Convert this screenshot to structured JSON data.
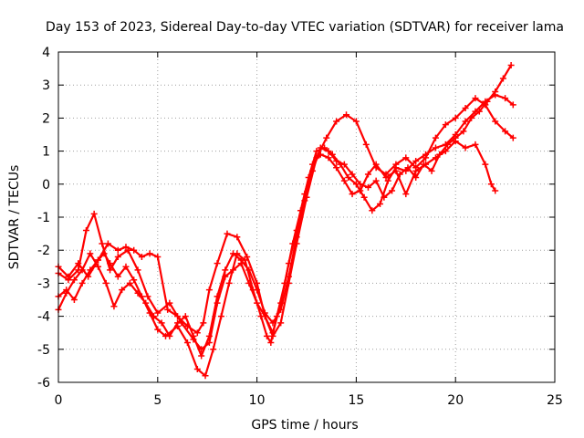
{
  "chart_data": {
    "type": "scatter",
    "title": "Day 153 of 2023, Sidereal Day-to-day VTEC variation (SDTVAR) for receiver lama",
    "xlabel": "GPS time / hours",
    "ylabel": "SDTVAR / TECUs",
    "xlim": [
      0,
      25
    ],
    "ylim": [
      -6,
      4
    ],
    "xticks": [
      "0",
      "5",
      "10",
      "15",
      "20",
      "25"
    ],
    "yticks": [
      "-6",
      "-5",
      "-4",
      "-3",
      "-2",
      "-1",
      "0",
      "1",
      "2",
      "3",
      "4"
    ],
    "grid": true,
    "marker": "+",
    "color": "#ff0000",
    "series": [
      {
        "x": [
          0.0,
          0.4,
          0.8,
          1.2,
          1.6,
          2.0,
          2.3,
          2.6,
          3.0,
          3.4,
          3.8,
          4.2,
          4.6,
          5.0,
          5.4,
          6.0,
          6.5,
          7.0,
          7.4,
          7.8,
          8.2,
          8.6,
          9.0,
          9.4,
          9.8,
          10.2,
          10.5,
          10.7,
          11.0,
          11.4,
          11.8,
          12.2,
          12.6,
          13.0,
          13.4,
          13.8,
          14.2,
          14.6,
          15.0,
          15.4,
          15.8,
          16.2,
          16.6,
          17.0,
          17.5,
          18.0,
          18.5,
          19.0,
          19.5,
          20.0,
          20.5,
          21.0,
          21.5,
          22.0,
          22.5,
          22.9
        ],
        "y": [
          -3.4,
          -3.2,
          -3.5,
          -3.0,
          -2.6,
          -2.3,
          -2.1,
          -2.4,
          -2.8,
          -2.5,
          -2.9,
          -3.4,
          -3.9,
          -4.4,
          -4.6,
          -4.3,
          -4.8,
          -5.6,
          -5.8,
          -5.0,
          -4.0,
          -3.0,
          -2.1,
          -2.3,
          -3.2,
          -4.0,
          -4.6,
          -4.8,
          -4.0,
          -3.0,
          -1.8,
          -0.8,
          0.2,
          1.0,
          1.1,
          0.9,
          0.6,
          0.2,
          0.0,
          -0.4,
          -0.8,
          -0.6,
          0.1,
          0.5,
          0.4,
          0.7,
          0.9,
          1.1,
          1.2,
          1.5,
          1.9,
          2.2,
          2.5,
          2.7,
          2.6,
          2.4
        ]
      },
      {
        "x": [
          0.0,
          0.5,
          1.0,
          1.4,
          1.8,
          2.2,
          2.6,
          3.0,
          3.5,
          4.0,
          4.5,
          5.0,
          5.6,
          6.2,
          6.8,
          7.2,
          7.6,
          8.0,
          8.4,
          8.8,
          9.2,
          9.6,
          10.0,
          10.4,
          10.8,
          11.2,
          11.6,
          12.0,
          12.4,
          12.8,
          13.2,
          13.6,
          14.0,
          14.4,
          14.8,
          15.2,
          15.6,
          16.0,
          16.5,
          17.0,
          17.5,
          18.0,
          18.5,
          19.0,
          19.5,
          20.0,
          20.5,
          21.0,
          21.5,
          21.8,
          22.0
        ],
        "y": [
          -2.7,
          -2.9,
          -2.6,
          -1.4,
          -0.9,
          -1.8,
          -2.6,
          -2.2,
          -2.0,
          -2.6,
          -3.4,
          -3.9,
          -3.6,
          -4.2,
          -4.7,
          -5.0,
          -4.8,
          -3.6,
          -2.8,
          -2.6,
          -2.4,
          -3.0,
          -3.6,
          -4.0,
          -4.5,
          -3.6,
          -2.4,
          -1.4,
          -0.3,
          0.6,
          0.9,
          0.8,
          0.5,
          0.1,
          -0.3,
          -0.2,
          0.3,
          0.6,
          0.2,
          0.4,
          -0.3,
          0.4,
          0.6,
          0.8,
          1.0,
          1.3,
          1.1,
          1.2,
          0.6,
          0.0,
          -0.2
        ]
      },
      {
        "x": [
          0.0,
          0.5,
          1.0,
          1.5,
          2.0,
          2.5,
          3.0,
          3.4,
          3.8,
          4.2,
          4.6,
          5.0,
          5.5,
          6.0,
          6.5,
          7.0,
          7.3,
          7.6,
          8.0,
          8.5,
          9.0,
          9.5,
          10.0,
          10.4,
          10.8,
          11.2,
          11.6,
          12.0,
          12.5,
          13.0,
          13.5,
          14.0,
          14.5,
          15.0,
          15.5,
          16.0,
          16.5,
          17.0,
          17.5,
          18.0,
          18.5,
          19.0,
          19.5,
          20.0,
          20.5,
          21.0,
          21.5,
          22.0,
          22.5,
          22.9
        ],
        "y": [
          -2.5,
          -2.8,
          -2.4,
          -2.8,
          -2.3,
          -1.8,
          -2.0,
          -1.9,
          -2.0,
          -2.2,
          -2.1,
          -2.2,
          -3.8,
          -4.0,
          -4.3,
          -4.5,
          -4.2,
          -3.2,
          -2.4,
          -1.5,
          -1.6,
          -2.2,
          -3.0,
          -4.0,
          -4.6,
          -4.2,
          -3.0,
          -1.8,
          -0.4,
          0.8,
          1.4,
          1.9,
          2.1,
          1.9,
          1.2,
          0.5,
          0.3,
          0.6,
          0.8,
          0.5,
          0.8,
          1.4,
          1.8,
          2.0,
          2.3,
          2.6,
          2.4,
          1.9,
          1.6,
          1.4
        ]
      },
      {
        "x": [
          0.0,
          0.4,
          0.8,
          1.2,
          1.6,
          2.0,
          2.4,
          2.8,
          3.2,
          3.6,
          4.0,
          4.4,
          4.8,
          5.2,
          5.6,
          6.0,
          6.4,
          6.8,
          7.2,
          7.6,
          8.0,
          8.4,
          8.8,
          9.2,
          9.6,
          10.0,
          10.4,
          10.8,
          11.2,
          11.6,
          12.0,
          12.4,
          12.8,
          13.2,
          13.6,
          14.0,
          14.4,
          14.8,
          15.2,
          15.6,
          16.0,
          16.4,
          16.8,
          17.2,
          17.6,
          18.0,
          18.4,
          18.8,
          19.2,
          19.6,
          20.0,
          20.4,
          20.8,
          21.2,
          21.6,
          22.0,
          22.4,
          22.8
        ],
        "y": [
          -3.8,
          -3.3,
          -2.9,
          -2.6,
          -2.1,
          -2.5,
          -3.0,
          -3.7,
          -3.2,
          -3.0,
          -3.3,
          -3.6,
          -4.0,
          -4.2,
          -4.6,
          -4.2,
          -4.0,
          -4.6,
          -5.2,
          -4.6,
          -3.4,
          -2.6,
          -2.1,
          -2.3,
          -2.6,
          -3.2,
          -3.9,
          -4.2,
          -3.8,
          -2.8,
          -1.6,
          -0.5,
          0.4,
          1.1,
          1.0,
          0.7,
          0.6,
          0.3,
          0.0,
          -0.1,
          0.1,
          -0.4,
          -0.2,
          0.3,
          0.5,
          0.2,
          0.6,
          0.4,
          0.9,
          1.2,
          1.4,
          1.6,
          2.0,
          2.2,
          2.5,
          2.8,
          3.2,
          3.6
        ]
      }
    ]
  }
}
